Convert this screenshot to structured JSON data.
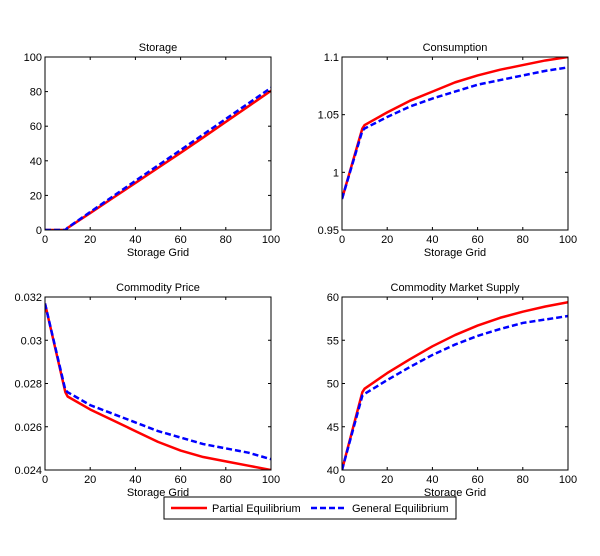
{
  "chart_data": [
    {
      "type": "line",
      "title": "Storage",
      "xlabel": "Storage Grid",
      "ylabel": "",
      "xlim": [
        0,
        100
      ],
      "ylim": [
        0,
        100
      ],
      "xticks": [
        "0",
        "20",
        "40",
        "60",
        "80",
        "100"
      ],
      "yticks": [
        "0",
        "20",
        "40",
        "60",
        "80",
        "100"
      ],
      "xtick_values": [
        0,
        20,
        40,
        60,
        80,
        100
      ],
      "ytick_values": [
        0,
        20,
        40,
        60,
        80,
        100
      ],
      "grid": false,
      "x": [
        0,
        5,
        9,
        10,
        20,
        30,
        40,
        50,
        60,
        70,
        80,
        90,
        100
      ],
      "series": [
        {
          "name": "Partial Equilibrium",
          "values": [
            0,
            0,
            0,
            1.2,
            9.8,
            18.5,
            27.2,
            35.9,
            44.6,
            53.5,
            62.5,
            71.5,
            80.5
          ]
        },
        {
          "name": "General Equilibrium",
          "values": [
            0,
            0,
            0,
            1.3,
            10.4,
            19.4,
            28.4,
            37.3,
            46.2,
            55.2,
            64.2,
            73.2,
            82.2
          ]
        }
      ]
    },
    {
      "type": "line",
      "title": "Consumption",
      "xlabel": "Storage Grid",
      "ylabel": "",
      "xlim": [
        0,
        100
      ],
      "ylim": [
        0.95,
        1.1
      ],
      "xticks": [
        "0",
        "20",
        "40",
        "60",
        "80",
        "100"
      ],
      "yticks": [
        "0.95",
        "1",
        "1.05",
        "1.1"
      ],
      "xtick_values": [
        0,
        20,
        40,
        60,
        80,
        100
      ],
      "ytick_values": [
        0.95,
        1.0,
        1.05,
        1.1
      ],
      "grid": false,
      "x": [
        0,
        9,
        10,
        20,
        30,
        40,
        50,
        60,
        70,
        80,
        90,
        100
      ],
      "series": [
        {
          "name": "Partial Equilibrium",
          "values": [
            0.977,
            1.038,
            1.041,
            1.052,
            1.062,
            1.07,
            1.078,
            1.084,
            1.089,
            1.093,
            1.097,
            1.1
          ]
        },
        {
          "name": "General Equilibrium",
          "values": [
            0.977,
            1.036,
            1.038,
            1.048,
            1.057,
            1.064,
            1.07,
            1.076,
            1.08,
            1.084,
            1.088,
            1.091
          ]
        }
      ]
    },
    {
      "type": "line",
      "title": "Commodity Price",
      "xlabel": "Storage Grid",
      "ylabel": "",
      "xlim": [
        0,
        100
      ],
      "ylim": [
        0.024,
        0.032
      ],
      "xticks": [
        "0",
        "20",
        "40",
        "60",
        "80",
        "100"
      ],
      "yticks": [
        "0.024",
        "0.026",
        "0.028",
        "0.03",
        "0.032"
      ],
      "xtick_values": [
        0,
        20,
        40,
        60,
        80,
        100
      ],
      "ytick_values": [
        0.024,
        0.026,
        0.028,
        0.03,
        0.032
      ],
      "grid": false,
      "x": [
        0,
        9,
        10,
        20,
        30,
        40,
        50,
        60,
        70,
        80,
        90,
        100
      ],
      "series": [
        {
          "name": "Partial Equilibrium",
          "values": [
            0.0317,
            0.0276,
            0.0274,
            0.0268,
            0.0263,
            0.0258,
            0.0253,
            0.0249,
            0.0246,
            0.0244,
            0.0242,
            0.024
          ]
        },
        {
          "name": "General Equilibrium",
          "values": [
            0.0317,
            0.0277,
            0.0276,
            0.027,
            0.0266,
            0.0262,
            0.0258,
            0.0255,
            0.0252,
            0.025,
            0.0248,
            0.0245
          ]
        }
      ]
    },
    {
      "type": "line",
      "title": "Commodity Market Supply",
      "xlabel": "Storage Grid",
      "ylabel": "",
      "xlim": [
        0,
        100
      ],
      "ylim": [
        40,
        60
      ],
      "xticks": [
        "0",
        "20",
        "40",
        "60",
        "80",
        "100"
      ],
      "yticks": [
        "40",
        "45",
        "50",
        "55",
        "60"
      ],
      "xtick_values": [
        0,
        20,
        40,
        60,
        80,
        100
      ],
      "ytick_values": [
        40,
        45,
        50,
        55,
        60
      ],
      "grid": false,
      "x": [
        0,
        9,
        10,
        20,
        30,
        40,
        50,
        60,
        70,
        80,
        90,
        100
      ],
      "series": [
        {
          "name": "Partial Equilibrium",
          "values": [
            40.0,
            49.0,
            49.4,
            51.2,
            52.8,
            54.3,
            55.6,
            56.7,
            57.6,
            58.3,
            58.9,
            59.4
          ]
        },
        {
          "name": "General Equilibrium",
          "values": [
            40.0,
            48.6,
            48.8,
            50.4,
            51.9,
            53.3,
            54.5,
            55.5,
            56.3,
            57.0,
            57.4,
            57.8
          ]
        }
      ]
    }
  ],
  "legend": {
    "placement": "bottom-center",
    "entries": [
      {
        "label": "Partial Equilibrium",
        "color": "#ff0000",
        "style": "solid"
      },
      {
        "label": "General Equilibrium",
        "color": "#0000ff",
        "style": "dashed"
      }
    ]
  },
  "colors": {
    "partial": "#ff0000",
    "general": "#0000ff",
    "axis": "#000000"
  }
}
